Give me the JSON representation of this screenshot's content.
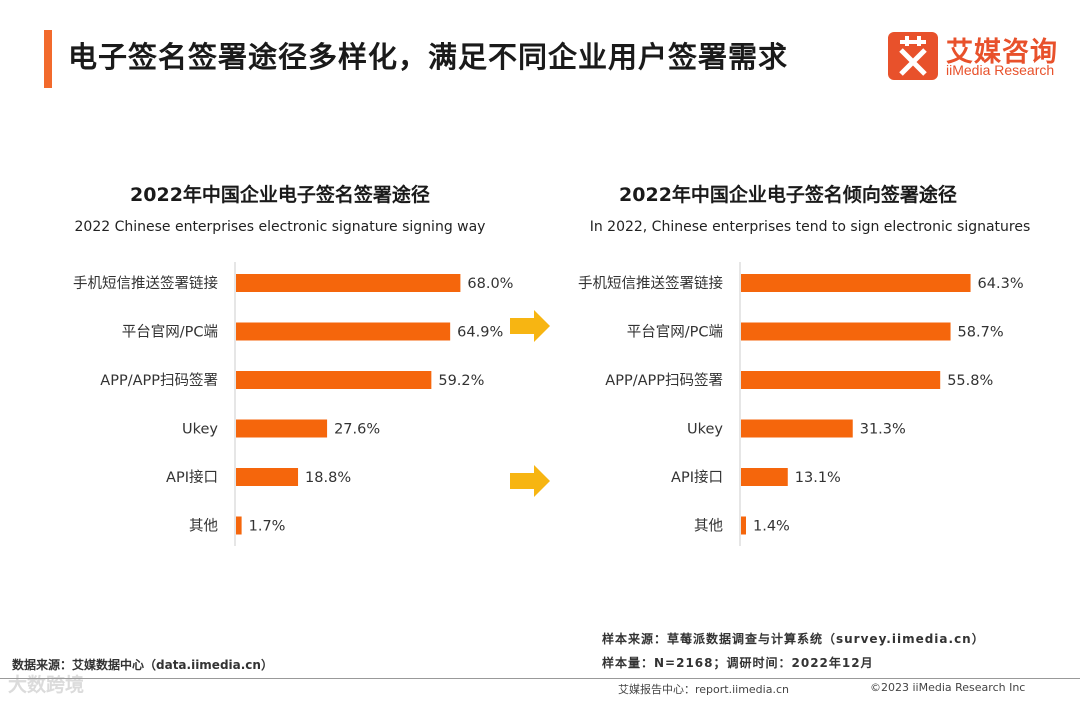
{
  "header": {
    "title": "电子签名签署途径多样化，满足不同企业用户签署需求",
    "logo_cn": "艾媒咨询",
    "logo_en": "iiMedia Research"
  },
  "chart_data": [
    {
      "type": "bar",
      "orientation": "horizontal",
      "title": "2022年中国企业电子签名签署途径",
      "subtitle": "2022 Chinese enterprises electronic signature signing way",
      "categories": [
        "手机短信推送签署链接",
        "平台官网/PC端",
        "APP/APP扫码签署",
        "Ukey",
        "API接口",
        "其他"
      ],
      "values": [
        68.0,
        64.9,
        59.2,
        27.6,
        18.8,
        1.7
      ],
      "value_labels": [
        "68.0%",
        "64.9%",
        "59.2%",
        "27.6%",
        "18.8%",
        "1.7%"
      ],
      "unit": "%",
      "xlim": [
        0,
        75
      ],
      "color": "#f5660c"
    },
    {
      "type": "bar",
      "orientation": "horizontal",
      "title": "2022年中国企业电子签名倾向签署途径",
      "subtitle": "In 2022, Chinese enterprises tend to sign electronic signatures",
      "categories": [
        "手机短信推送签署链接",
        "平台官网/PC端",
        "APP/APP扫码签署",
        "Ukey",
        "API接口",
        "其他"
      ],
      "values": [
        64.3,
        58.7,
        55.8,
        31.3,
        13.1,
        1.4
      ],
      "value_labels": [
        "64.3%",
        "58.7%",
        "55.8%",
        "31.3%",
        "13.1%",
        "1.4%"
      ],
      "unit": "%",
      "xlim": [
        0,
        75
      ],
      "color": "#f5660c"
    }
  ],
  "arrow_color": "#f7b512",
  "footer": {
    "source": "数据来源：艾媒数据中心（data.iimedia.cn）",
    "sample_source": "样本来源：草莓派数据调查与计算系统（survey.iimedia.cn）",
    "sample_size": "样本量：N=2168；调研时间：2022年12月",
    "report_center": "艾媒报告中心：report.iimedia.cn",
    "copyright": "©2023  iiMedia Research  Inc",
    "watermark": "大数跨境"
  }
}
